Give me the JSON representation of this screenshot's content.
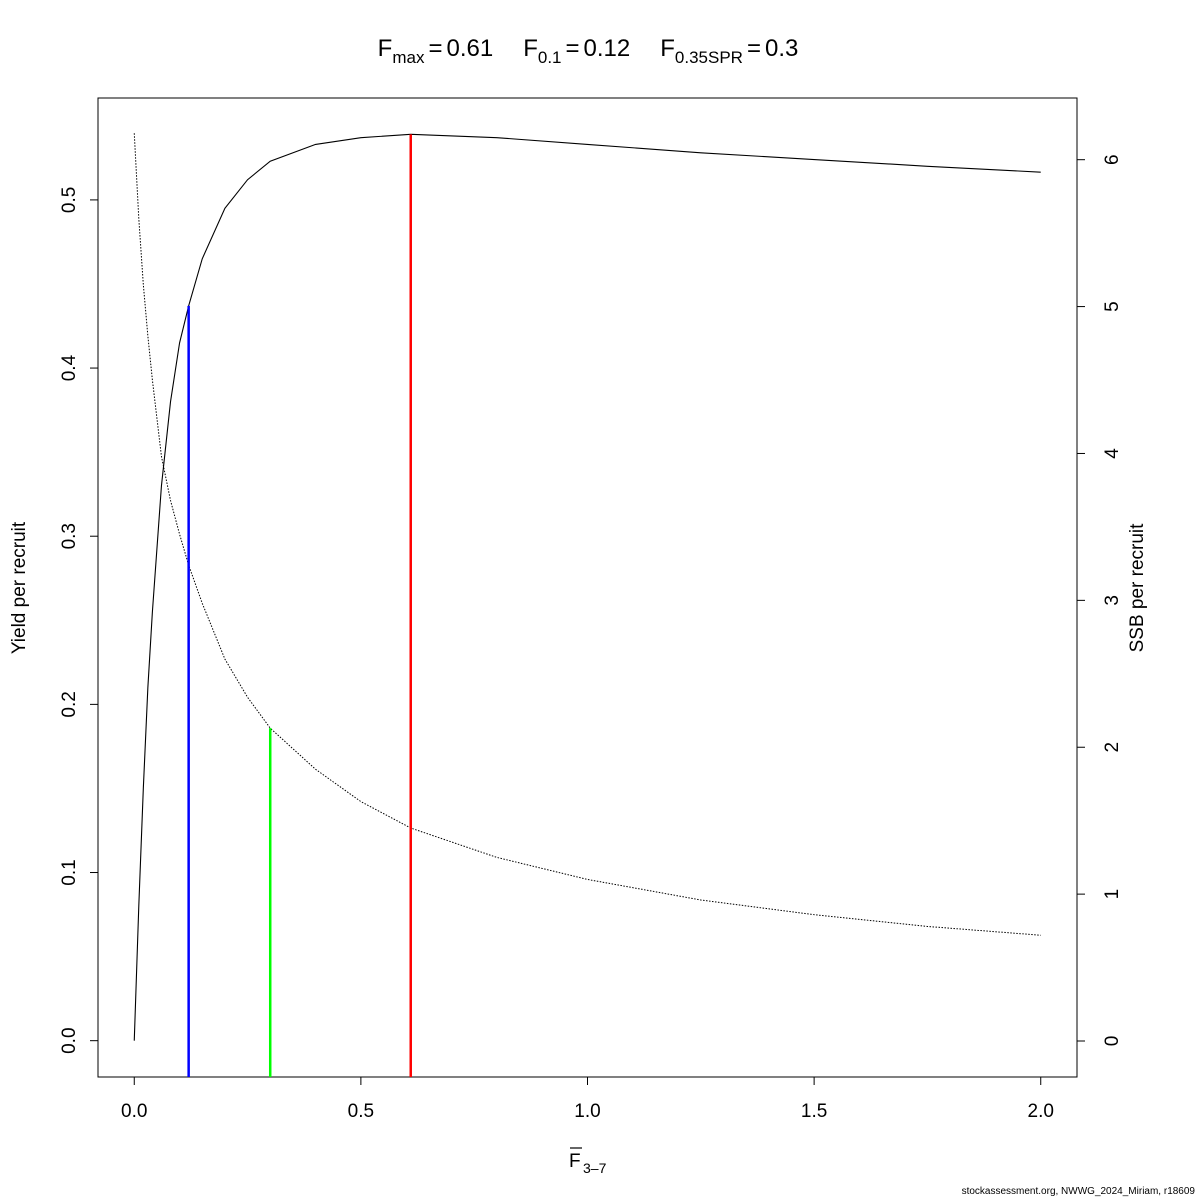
{
  "chart_data": {
    "type": "line",
    "title_parts": [
      {
        "symbol": "F",
        "sub": "max",
        "value": 0.61
      },
      {
        "symbol": "F",
        "sub": "0.1",
        "value": 0.12
      },
      {
        "symbol": "F",
        "sub": "0.35SPR",
        "value": 0.3
      }
    ],
    "title_separator": "=",
    "xlabel": {
      "main": "F",
      "sub": "3–7"
    },
    "ylabel": "Yield per recruit",
    "y2label": "SSB per recruit",
    "footer": "stockassessment.org, NWWG_2024_Miriam, r18609",
    "x": [
      0,
      0.01,
      0.02,
      0.03,
      0.04,
      0.06,
      0.08,
      0.1,
      0.12,
      0.15,
      0.2,
      0.25,
      0.3,
      0.4,
      0.5,
      0.61,
      0.8,
      1.0,
      1.25,
      1.5,
      1.75,
      2.0
    ],
    "series": [
      {
        "color": "#000000",
        "style": "solid",
        "values": [
          0,
          0.08,
          0.15,
          0.21,
          0.255,
          0.33,
          0.38,
          0.415,
          0.437,
          0.465,
          0.495,
          0.512,
          0.523,
          0.533,
          0.537,
          0.539,
          0.537,
          0.533,
          0.528,
          0.524,
          0.52,
          0.5165
        ]
      },
      {
        "color": "#000000",
        "style": "dotted",
        "axis": "y2",
        "values": [
          6.18,
          5.6,
          5.15,
          4.8,
          4.5,
          3.98,
          3.68,
          3.45,
          3.24,
          2.98,
          2.6,
          2.34,
          2.13,
          1.85,
          1.63,
          1.45,
          1.25,
          1.1,
          0.96,
          0.86,
          0.78,
          0.72
        ]
      }
    ],
    "reference_lines": [
      {
        "x": 0.12,
        "y": 0.437,
        "color": "#0000ff"
      },
      {
        "x": 0.3,
        "y": 2.13,
        "axis": "y2",
        "color": "#00ff00"
      },
      {
        "x": 0.61,
        "y": 0.539,
        "color": "#ff0000"
      }
    ],
    "xlim": [
      -0.08,
      2.08
    ],
    "ylim": [
      -0.0216,
      0.5606
    ],
    "y2lim": [
      -0.245,
      6.42
    ],
    "xticks": [
      {
        "value": 0,
        "label": "0.0"
      },
      0.5,
      {
        "value": 1,
        "label": "1.0"
      },
      1.5,
      {
        "value": 2,
        "label": "2.0"
      }
    ],
    "yticks": [
      {
        "value": 0,
        "label": "0.0"
      },
      0.1,
      0.2,
      0.3,
      0.4,
      0.5
    ],
    "y2ticks": [
      0,
      1,
      2,
      3,
      4,
      5,
      6
    ]
  }
}
